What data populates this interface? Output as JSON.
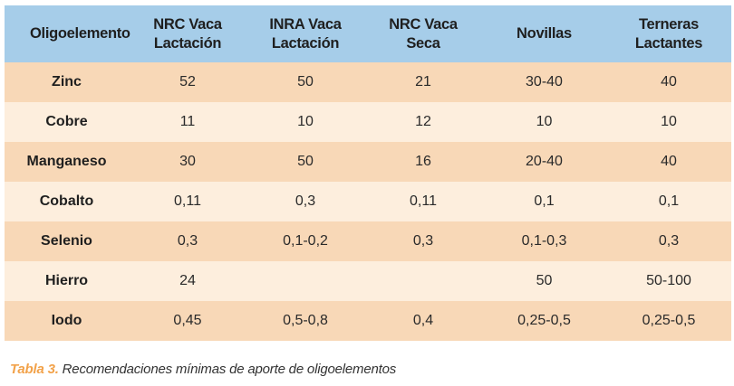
{
  "table": {
    "headers": [
      {
        "line1": "Oligoelemento",
        "line2": ""
      },
      {
        "line1": "NRC Vaca",
        "line2": "Lactación"
      },
      {
        "line1": "INRA Vaca",
        "line2": "Lactación"
      },
      {
        "line1": "NRC Vaca",
        "line2": "Seca"
      },
      {
        "line1": "Novillas",
        "line2": ""
      },
      {
        "line1": "Terneras",
        "line2": "Lactantes"
      }
    ],
    "rows": [
      {
        "name": "Zinc",
        "values": [
          "52",
          "50",
          "21",
          "30-40",
          "40"
        ]
      },
      {
        "name": "Cobre",
        "values": [
          "11",
          "10",
          "12",
          "10",
          "10"
        ]
      },
      {
        "name": "Manganeso",
        "values": [
          "30",
          "50",
          "16",
          "20-40",
          "40"
        ]
      },
      {
        "name": "Cobalto",
        "values": [
          "0,11",
          "0,3",
          "0,11",
          "0,1",
          "0,1"
        ]
      },
      {
        "name": "Selenio",
        "values": [
          "0,3",
          "0,1-0,2",
          "0,3",
          "0,1-0,3",
          "0,3"
        ]
      },
      {
        "name": "Hierro",
        "values": [
          "24",
          "",
          "",
          "50",
          "50-100"
        ]
      },
      {
        "name": "Iodo",
        "values": [
          "0,45",
          "0,5-0,8",
          "0,4",
          "0,25-0,5",
          "0,25-0,5"
        ]
      }
    ]
  },
  "caption": {
    "label": "Tabla 3.",
    "text": " Recomendaciones mínimas de aporte de oligoelementos"
  },
  "colors": {
    "header_bg": "#a6cde9",
    "row_odd": "#f8d8b7",
    "row_even": "#fdeedd",
    "caption_label": "#f2a24a"
  }
}
